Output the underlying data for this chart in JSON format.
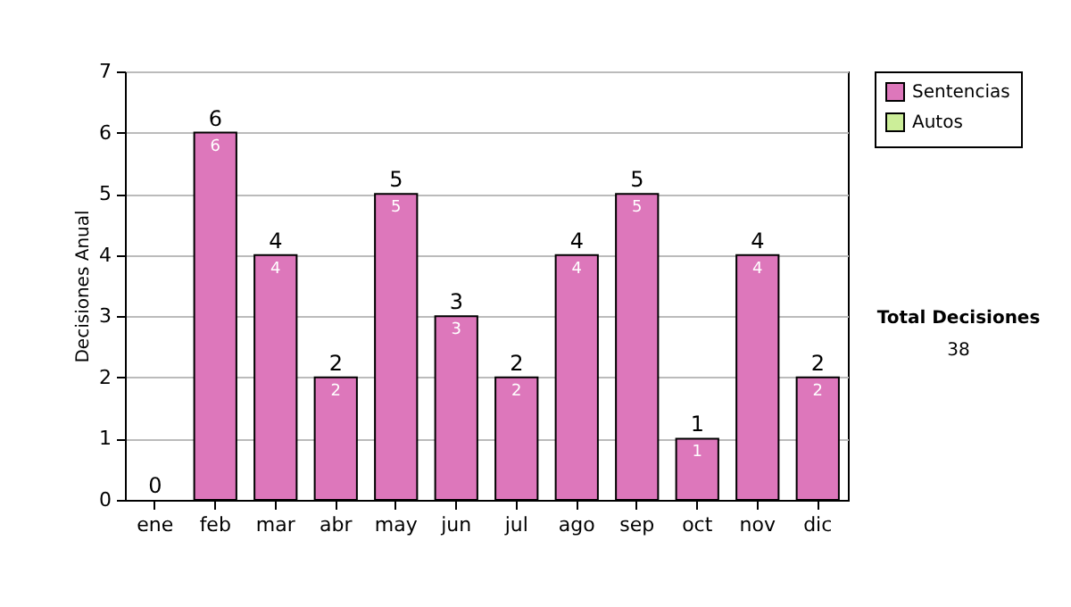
{
  "chart_data": {
    "type": "bar",
    "stacked": true,
    "ylabel": "Decisiones Anual",
    "categories": [
      "ene",
      "feb",
      "mar",
      "abr",
      "may",
      "jun",
      "jul",
      "ago",
      "sep",
      "oct",
      "nov",
      "dic"
    ],
    "series": [
      {
        "name": "Sentencias",
        "color": "#dd77bb",
        "values": [
          0,
          6,
          4,
          2,
          5,
          3,
          2,
          4,
          5,
          1,
          4,
          2
        ],
        "value_labels": [
          null,
          "6",
          "4",
          "2",
          "5",
          "3",
          "2",
          "4",
          "5",
          "1",
          "4",
          "2"
        ]
      },
      {
        "name": "Autos",
        "color": "#ccee99",
        "values": [
          0,
          0,
          0,
          0,
          0,
          0,
          0,
          0,
          0,
          0,
          0,
          0
        ]
      }
    ],
    "totals": [
      "0",
      "6",
      "4",
      "2",
      "5",
      "3",
      "2",
      "4",
      "5",
      "1",
      "4",
      "2"
    ],
    "ylim": [
      0,
      7
    ],
    "yticks": [
      0,
      1,
      2,
      3,
      4,
      5,
      6,
      7
    ],
    "grid": "y",
    "legend": "right",
    "annotations": [
      "Total Decisiones",
      "38"
    ]
  }
}
